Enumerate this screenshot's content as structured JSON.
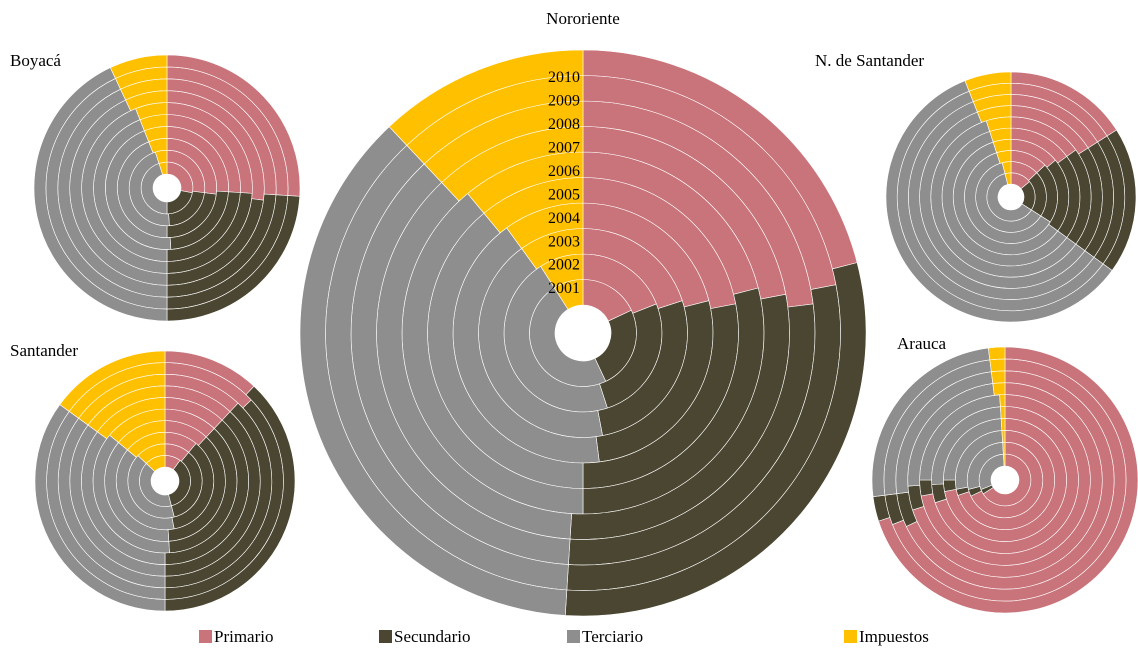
{
  "chart_data": [
    {
      "type": "doughnut",
      "title": "Nororiente",
      "categories": [
        "2001",
        "2002",
        "2003",
        "2004",
        "2005",
        "2006",
        "2007",
        "2008",
        "2009",
        "2010"
      ],
      "series": [
        {
          "name": "Primario",
          "color": "#c9747b",
          "values": [
            18,
            19,
            20,
            21,
            22,
            21,
            22,
            23,
            22,
            21
          ]
        },
        {
          "name": "Secundario",
          "color": "#4a4631",
          "values": [
            25,
            26,
            27,
            27,
            28,
            29,
            29,
            28,
            29,
            30
          ]
        },
        {
          "name": "Terciario",
          "color": "#8e8e8e",
          "values": [
            48,
            46,
            43,
            42,
            39,
            39,
            37,
            37,
            37,
            37
          ]
        },
        {
          "name": "Impuestos",
          "color": "#ffc000",
          "values": [
            9,
            9,
            10,
            10,
            11,
            11,
            12,
            12,
            12,
            12
          ]
        }
      ]
    },
    {
      "type": "doughnut",
      "title": "Boyacá",
      "series": [
        {
          "values": [
            28,
            27,
            27,
            26,
            26,
            26,
            27,
            26,
            26,
            26
          ]
        },
        {
          "values": [
            22,
            22,
            23,
            23,
            24,
            24,
            23,
            24,
            24,
            24
          ]
        },
        {
          "values": [
            45,
            46,
            44,
            45,
            44,
            44,
            43,
            43,
            43,
            43
          ]
        },
        {
          "values": [
            5,
            5,
            6,
            6,
            6,
            6,
            7,
            7,
            7,
            7
          ]
        }
      ]
    },
    {
      "type": "doughnut",
      "title": "N. de Santander",
      "series": [
        {
          "values": [
            14,
            13,
            13,
            14,
            15,
            15,
            16,
            16,
            16,
            16
          ]
        },
        {
          "values": [
            20,
            21,
            21,
            21,
            20,
            20,
            19,
            19,
            19,
            19
          ]
        },
        {
          "values": [
            62,
            62,
            61,
            60,
            60,
            60,
            59,
            59,
            59,
            59
          ]
        },
        {
          "values": [
            4,
            4,
            5,
            5,
            5,
            5,
            6,
            6,
            6,
            6
          ]
        }
      ]
    },
    {
      "type": "doughnut",
      "title": "Santander",
      "series": [
        {
          "values": [
            10,
            11,
            11,
            12,
            12,
            12,
            12,
            12,
            13,
            12
          ]
        },
        {
          "values": [
            36,
            35,
            36,
            37,
            37,
            38,
            38,
            38,
            37,
            38
          ]
        },
        {
          "values": [
            41,
            41,
            39,
            37,
            37,
            35,
            35,
            35,
            35,
            35
          ]
        },
        {
          "values": [
            13,
            13,
            14,
            14,
            14,
            15,
            15,
            15,
            15,
            15
          ]
        }
      ]
    },
    {
      "type": "doughnut",
      "title": "Arauca",
      "series": [
        {
          "values": [
            66,
            68,
            70,
            72,
            70,
            72,
            70,
            68,
            69,
            70
          ]
        },
        {
          "values": [
            3,
            3,
            2,
            3,
            4,
            3,
            4,
            5,
            4,
            3
          ]
        },
        {
          "values": [
            30,
            28,
            27,
            24,
            25,
            24,
            24,
            25,
            25,
            25
          ]
        },
        {
          "values": [
            1,
            1,
            1,
            1,
            1,
            1,
            2,
            2,
            2,
            2
          ]
        }
      ]
    }
  ]
}
